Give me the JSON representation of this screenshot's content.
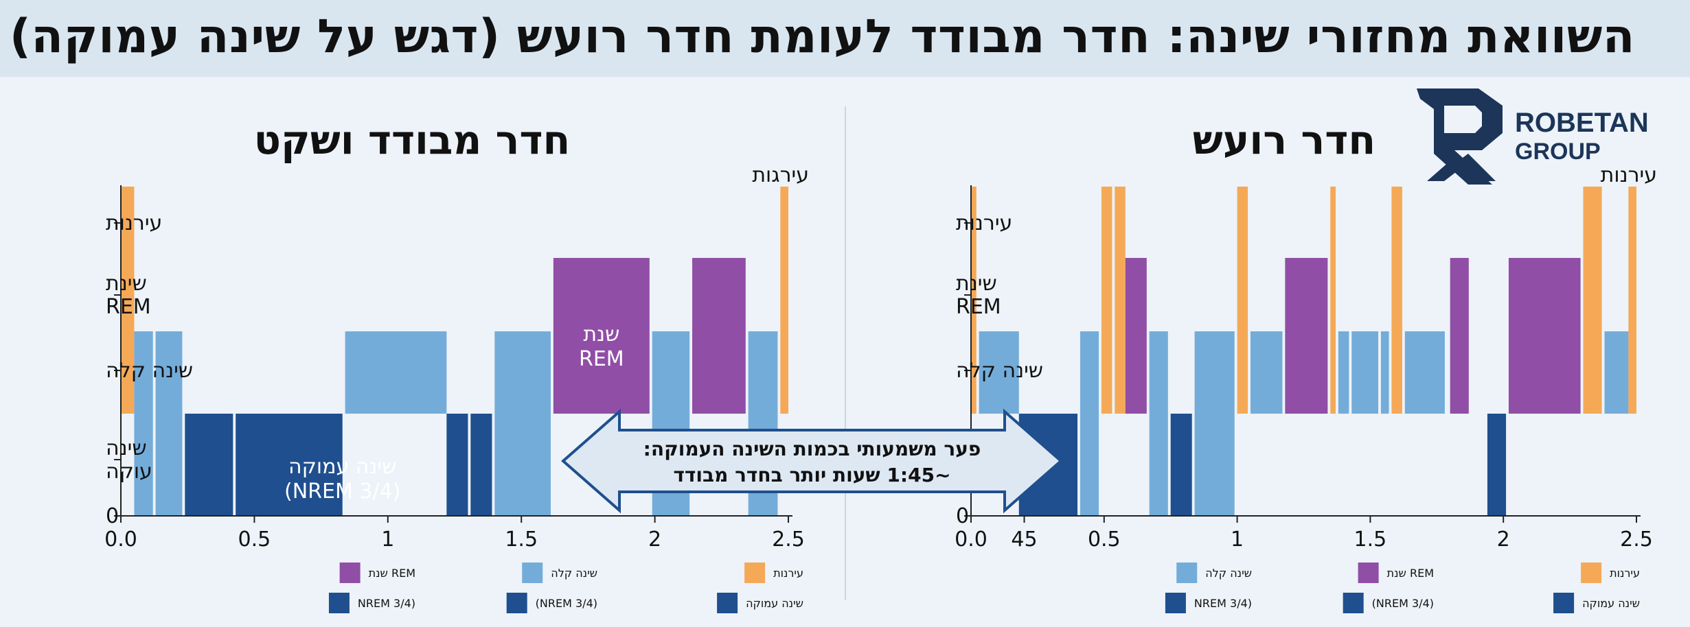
{
  "header": {
    "title": "השוואת מחזורי שינה: חדר מבודד לעומת חדר רועש (דגש על שינה עמוקה)"
  },
  "logo": {
    "line1": "ROBETAN",
    "line2": "GROUP"
  },
  "colors": {
    "awake": "#f5a957",
    "rem": "#904ea6",
    "light": "#74acd9",
    "deep": "#1f4f8e",
    "axis": "#222222",
    "arrow_fill": "#dde8f3",
    "arrow_stroke": "#1f4f8e"
  },
  "comparison": {
    "line1": "פער משמעותי בכמות השינה העמוקה:",
    "line2": "~1:45 שעות יותר בחדר מבודד"
  },
  "chart_data": [
    {
      "type": "bar",
      "panel": "left",
      "title": "חדר מבודד ושקט",
      "xlabel": "",
      "ylabel": "",
      "xlim": [
        0,
        2.5
      ],
      "x_ticks": [
        "0.0",
        "0.5",
        "1",
        "1.5",
        "2",
        "2.5"
      ],
      "y_ticks": [
        "0",
        "שינה|עוקה",
        "שינה קלה",
        "שינת|REM",
        "עירנות"
      ],
      "y_corner_label": "עירגות",
      "levels": {
        "deep": 1,
        "light": 2,
        "rem": 3,
        "awake": 4
      },
      "segments": [
        {
          "stage": "awake",
          "start": 0.0,
          "end": 0.05
        },
        {
          "stage": "light",
          "start": 0.05,
          "end": 0.12
        },
        {
          "stage": "light",
          "start": 0.13,
          "end": 0.23
        },
        {
          "stage": "deep",
          "start": 0.24,
          "end": 0.42
        },
        {
          "stage": "deep",
          "start": 0.43,
          "end": 0.83
        },
        {
          "stage": "light",
          "start": 0.84,
          "end": 1.22
        },
        {
          "stage": "deep",
          "start": 1.22,
          "end": 1.3
        },
        {
          "stage": "deep",
          "start": 1.31,
          "end": 1.39
        },
        {
          "stage": "light",
          "start": 1.4,
          "end": 1.61
        },
        {
          "stage": "rem",
          "start": 1.62,
          "end": 1.98
        },
        {
          "stage": "light",
          "start": 1.99,
          "end": 2.13
        },
        {
          "stage": "rem",
          "start": 2.14,
          "end": 2.34
        },
        {
          "stage": "light",
          "start": 2.35,
          "end": 2.46
        },
        {
          "stage": "awake",
          "start": 2.47,
          "end": 2.5
        }
      ],
      "annotations": [
        {
          "text_lines": [
            "שינה עמוקה",
            "(NREM 3/4)"
          ],
          "x": 0.83,
          "level": 0.5,
          "color": "#ffffff"
        },
        {
          "text_lines": [
            "שנת",
            "REM"
          ],
          "x": 1.8,
          "level": 2.45,
          "color": "#ffffff"
        }
      ],
      "legend": [
        {
          "label": "עירנות",
          "stage": "awake"
        },
        {
          "label": "שינה קלה",
          "stage": "light"
        },
        {
          "label": "שנת REM",
          "stage": "rem"
        },
        {
          "label": "שינה עמוקה",
          "stage": "deep"
        },
        {
          "label": "(NREM 3/4)",
          "stage": "deep"
        },
        {
          "label": "NREM 3/4)",
          "stage": "deep"
        }
      ]
    },
    {
      "type": "bar",
      "panel": "right",
      "title": "חדר רועש",
      "xlabel": "",
      "ylabel": "",
      "xlim": [
        0,
        2.5
      ],
      "x_ticks": [
        "0.0",
        "45",
        "0.5",
        "1",
        "1.5",
        "2",
        "2.5"
      ],
      "x_tick_positions": [
        0.0,
        0.2,
        0.5,
        1.0,
        1.5,
        2.0,
        2.5
      ],
      "y_ticks": [
        "0",
        "",
        "שינה קלה",
        "שינת|REM",
        "עירנות"
      ],
      "y_corner_label": "עירנות",
      "levels": {
        "deep": 1,
        "light": 2,
        "rem": 3,
        "awake": 4
      },
      "segments": [
        {
          "stage": "awake",
          "start": 0.0,
          "end": 0.02
        },
        {
          "stage": "light",
          "start": 0.03,
          "end": 0.18
        },
        {
          "stage": "deep",
          "start": 0.18,
          "end": 0.4
        },
        {
          "stage": "light",
          "start": 0.41,
          "end": 0.48
        },
        {
          "stage": "awake",
          "start": 0.49,
          "end": 0.53
        },
        {
          "stage": "awake",
          "start": 0.54,
          "end": 0.58
        },
        {
          "stage": "rem",
          "start": 0.58,
          "end": 0.66
        },
        {
          "stage": "light",
          "start": 0.67,
          "end": 0.74
        },
        {
          "stage": "deep",
          "start": 0.75,
          "end": 0.83
        },
        {
          "stage": "light",
          "start": 0.84,
          "end": 0.99
        },
        {
          "stage": "awake",
          "start": 1.0,
          "end": 1.04
        },
        {
          "stage": "light",
          "start": 1.05,
          "end": 1.17
        },
        {
          "stage": "rem",
          "start": 1.18,
          "end": 1.34
        },
        {
          "stage": "awake",
          "start": 1.35,
          "end": 1.37
        },
        {
          "stage": "light",
          "start": 1.38,
          "end": 1.42
        },
        {
          "stage": "light",
          "start": 1.43,
          "end": 1.53
        },
        {
          "stage": "light",
          "start": 1.54,
          "end": 1.57
        },
        {
          "stage": "awake",
          "start": 1.58,
          "end": 1.62
        },
        {
          "stage": "light",
          "start": 1.63,
          "end": 1.78
        },
        {
          "stage": "rem",
          "start": 1.8,
          "end": 1.87
        },
        {
          "stage": "deep",
          "start": 1.94,
          "end": 2.01
        },
        {
          "stage": "rem",
          "start": 2.02,
          "end": 2.29
        },
        {
          "stage": "awake",
          "start": 2.3,
          "end": 2.37
        },
        {
          "stage": "light",
          "start": 2.38,
          "end": 2.47
        },
        {
          "stage": "awake",
          "start": 2.47,
          "end": 2.5
        }
      ],
      "legend": [
        {
          "label": "עירנות",
          "stage": "awake"
        },
        {
          "label": "שנת REM",
          "stage": "rem"
        },
        {
          "label": "שינה קלה",
          "stage": "light"
        },
        {
          "label": "שינה עמוקה",
          "stage": "deep"
        },
        {
          "label": "(NREM 3/4)",
          "stage": "deep"
        },
        {
          "label": "NREM 3/4)",
          "stage": "deep"
        }
      ]
    }
  ]
}
